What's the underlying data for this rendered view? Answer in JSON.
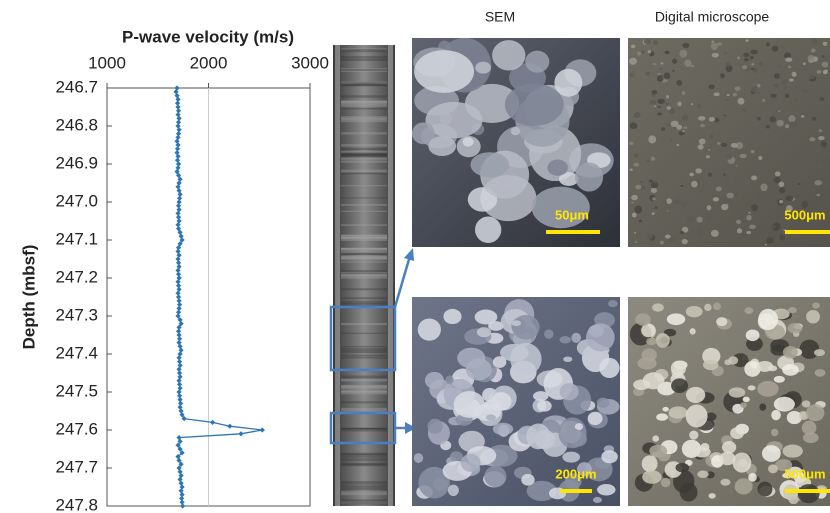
{
  "chart_data": {
    "type": "line",
    "title": "P-wave velocity (m/s)",
    "y_label": "Depth (mbsf)",
    "color": "#2e75b6",
    "y": [
      246.7,
      246.71,
      246.72,
      246.73,
      246.74,
      246.75,
      246.76,
      246.77,
      246.78,
      246.79,
      246.8,
      246.81,
      246.82,
      246.83,
      246.84,
      246.85,
      246.86,
      246.87,
      246.88,
      246.89,
      246.9,
      246.91,
      246.92,
      246.93,
      246.94,
      246.95,
      246.96,
      246.97,
      246.98,
      246.99,
      247.0,
      247.01,
      247.02,
      247.03,
      247.04,
      247.05,
      247.06,
      247.07,
      247.08,
      247.09,
      247.1,
      247.11,
      247.12,
      247.13,
      247.14,
      247.15,
      247.16,
      247.17,
      247.18,
      247.19,
      247.2,
      247.21,
      247.22,
      247.23,
      247.24,
      247.25,
      247.26,
      247.27,
      247.28,
      247.29,
      247.3,
      247.31,
      247.32,
      247.33,
      247.34,
      247.35,
      247.36,
      247.37,
      247.38,
      247.39,
      247.4,
      247.41,
      247.42,
      247.43,
      247.44,
      247.45,
      247.46,
      247.47,
      247.48,
      247.49,
      247.5,
      247.51,
      247.52,
      247.53,
      247.54,
      247.55,
      247.56,
      247.57,
      247.58,
      247.59,
      247.6,
      247.61,
      247.62,
      247.63,
      247.64,
      247.65,
      247.66,
      247.67,
      247.68,
      247.69,
      247.7,
      247.71,
      247.72,
      247.73,
      247.74,
      247.75,
      247.76,
      247.77,
      247.78,
      247.79,
      247.8
    ],
    "values": [
      1690,
      1680,
      1690,
      1700,
      1695,
      1700,
      1705,
      1700,
      1710,
      1705,
      1700,
      1710,
      1705,
      1700,
      1690,
      1700,
      1695,
      1690,
      1700,
      1695,
      1705,
      1700,
      1690,
      1705,
      1720,
      1710,
      1700,
      1710,
      1720,
      1715,
      1710,
      1705,
      1710,
      1700,
      1705,
      1710,
      1700,
      1705,
      1720,
      1730,
      1740,
      1720,
      1705,
      1700,
      1710,
      1700,
      1705,
      1710,
      1700,
      1705,
      1710,
      1700,
      1705,
      1710,
      1700,
      1705,
      1710,
      1715,
      1710,
      1705,
      1700,
      1720,
      1730,
      1710,
      1705,
      1710,
      1715,
      1710,
      1720,
      1730,
      1720,
      1710,
      1715,
      1720,
      1710,
      1715,
      1720,
      1710,
      1715,
      1720,
      1710,
      1715,
      1720,
      1725,
      1720,
      1730,
      1740,
      1760,
      2040,
      2210,
      2530,
      2320,
      1710,
      1720,
      1700,
      1720,
      1740,
      1700,
      1710,
      1730,
      1710,
      1720,
      1730,
      1720,
      1730,
      1740,
      1730,
      1740,
      1735,
      1740,
      1745
    ],
    "xlim": [
      1000,
      3000
    ],
    "xticks": [
      1000,
      2000,
      3000
    ],
    "ylim": [
      246.7,
      247.8
    ],
    "y_inverted": true,
    "yticks": [
      246.7,
      246.8,
      246.9,
      {
        "value": 247,
        "label": "247.0"
      },
      247.1,
      247.2,
      247.3,
      247.4,
      247.5,
      247.6,
      247.7,
      247.8
    ],
    "grid": true
  },
  "panels": {
    "sem_title": "SEM",
    "microscope_title": "Digital microscope",
    "scale_bars": [
      "50μm",
      "500μm",
      "200μm",
      "500μm"
    ]
  }
}
